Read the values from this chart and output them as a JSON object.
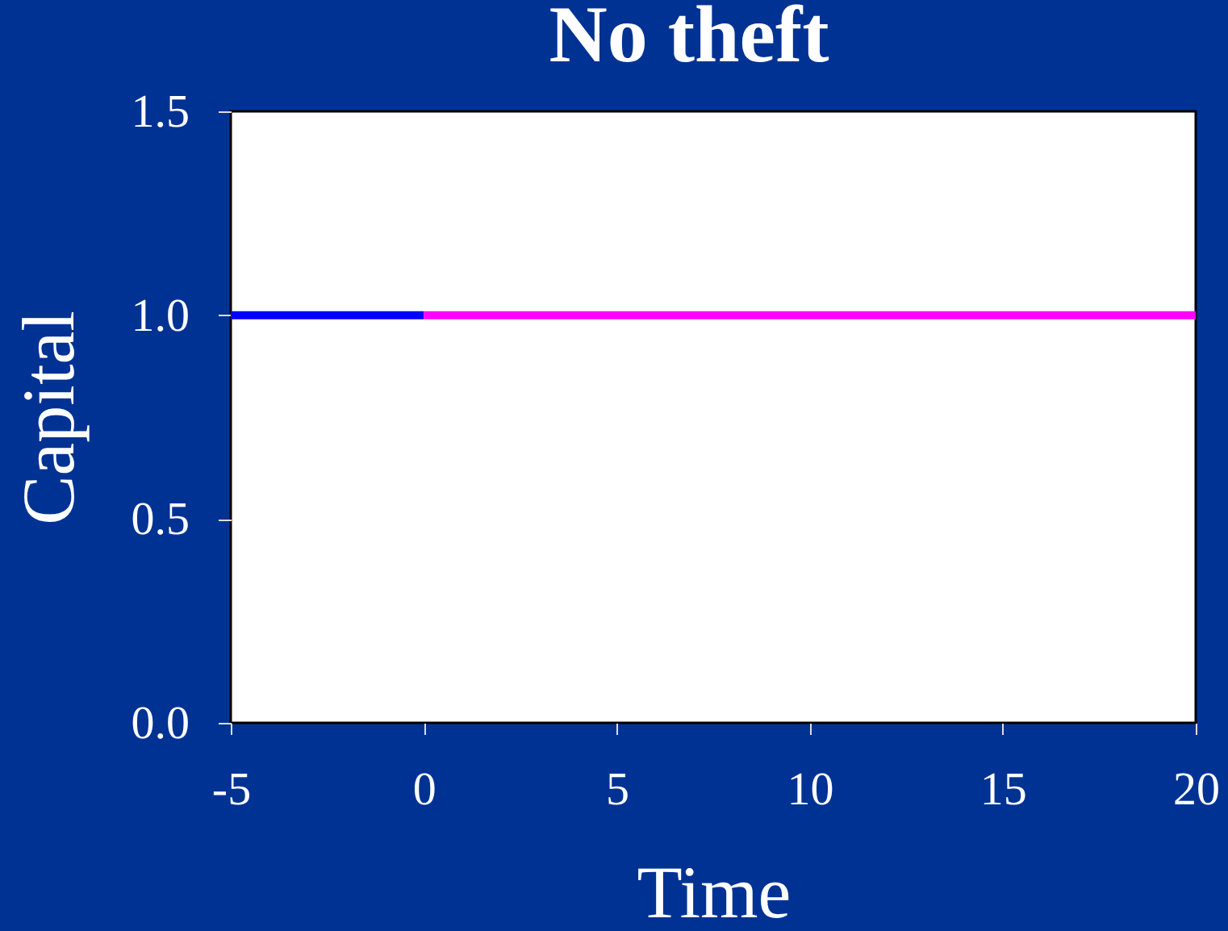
{
  "chart_data": {
    "type": "line",
    "title": "No theft",
    "xlabel": "Time",
    "ylabel": "Capital",
    "series": [
      {
        "color": "#0000ff",
        "x": [
          -5,
          0
        ],
        "values": [
          1,
          1
        ]
      },
      {
        "color": "#ff00ff",
        "x": [
          0,
          20
        ],
        "values": [
          1,
          1
        ]
      }
    ],
    "xlim": [
      -5,
      20
    ],
    "xticks": [
      -5,
      0,
      5,
      10,
      15,
      20
    ],
    "ylim": [
      0,
      1.5
    ],
    "yticks": [
      {
        "value": 0,
        "label": "0.0"
      },
      {
        "value": 0.5,
        "label": "0.5"
      },
      {
        "value": 1,
        "label": "1.0"
      },
      {
        "value": 1.5,
        "label": "1.5"
      }
    ]
  }
}
